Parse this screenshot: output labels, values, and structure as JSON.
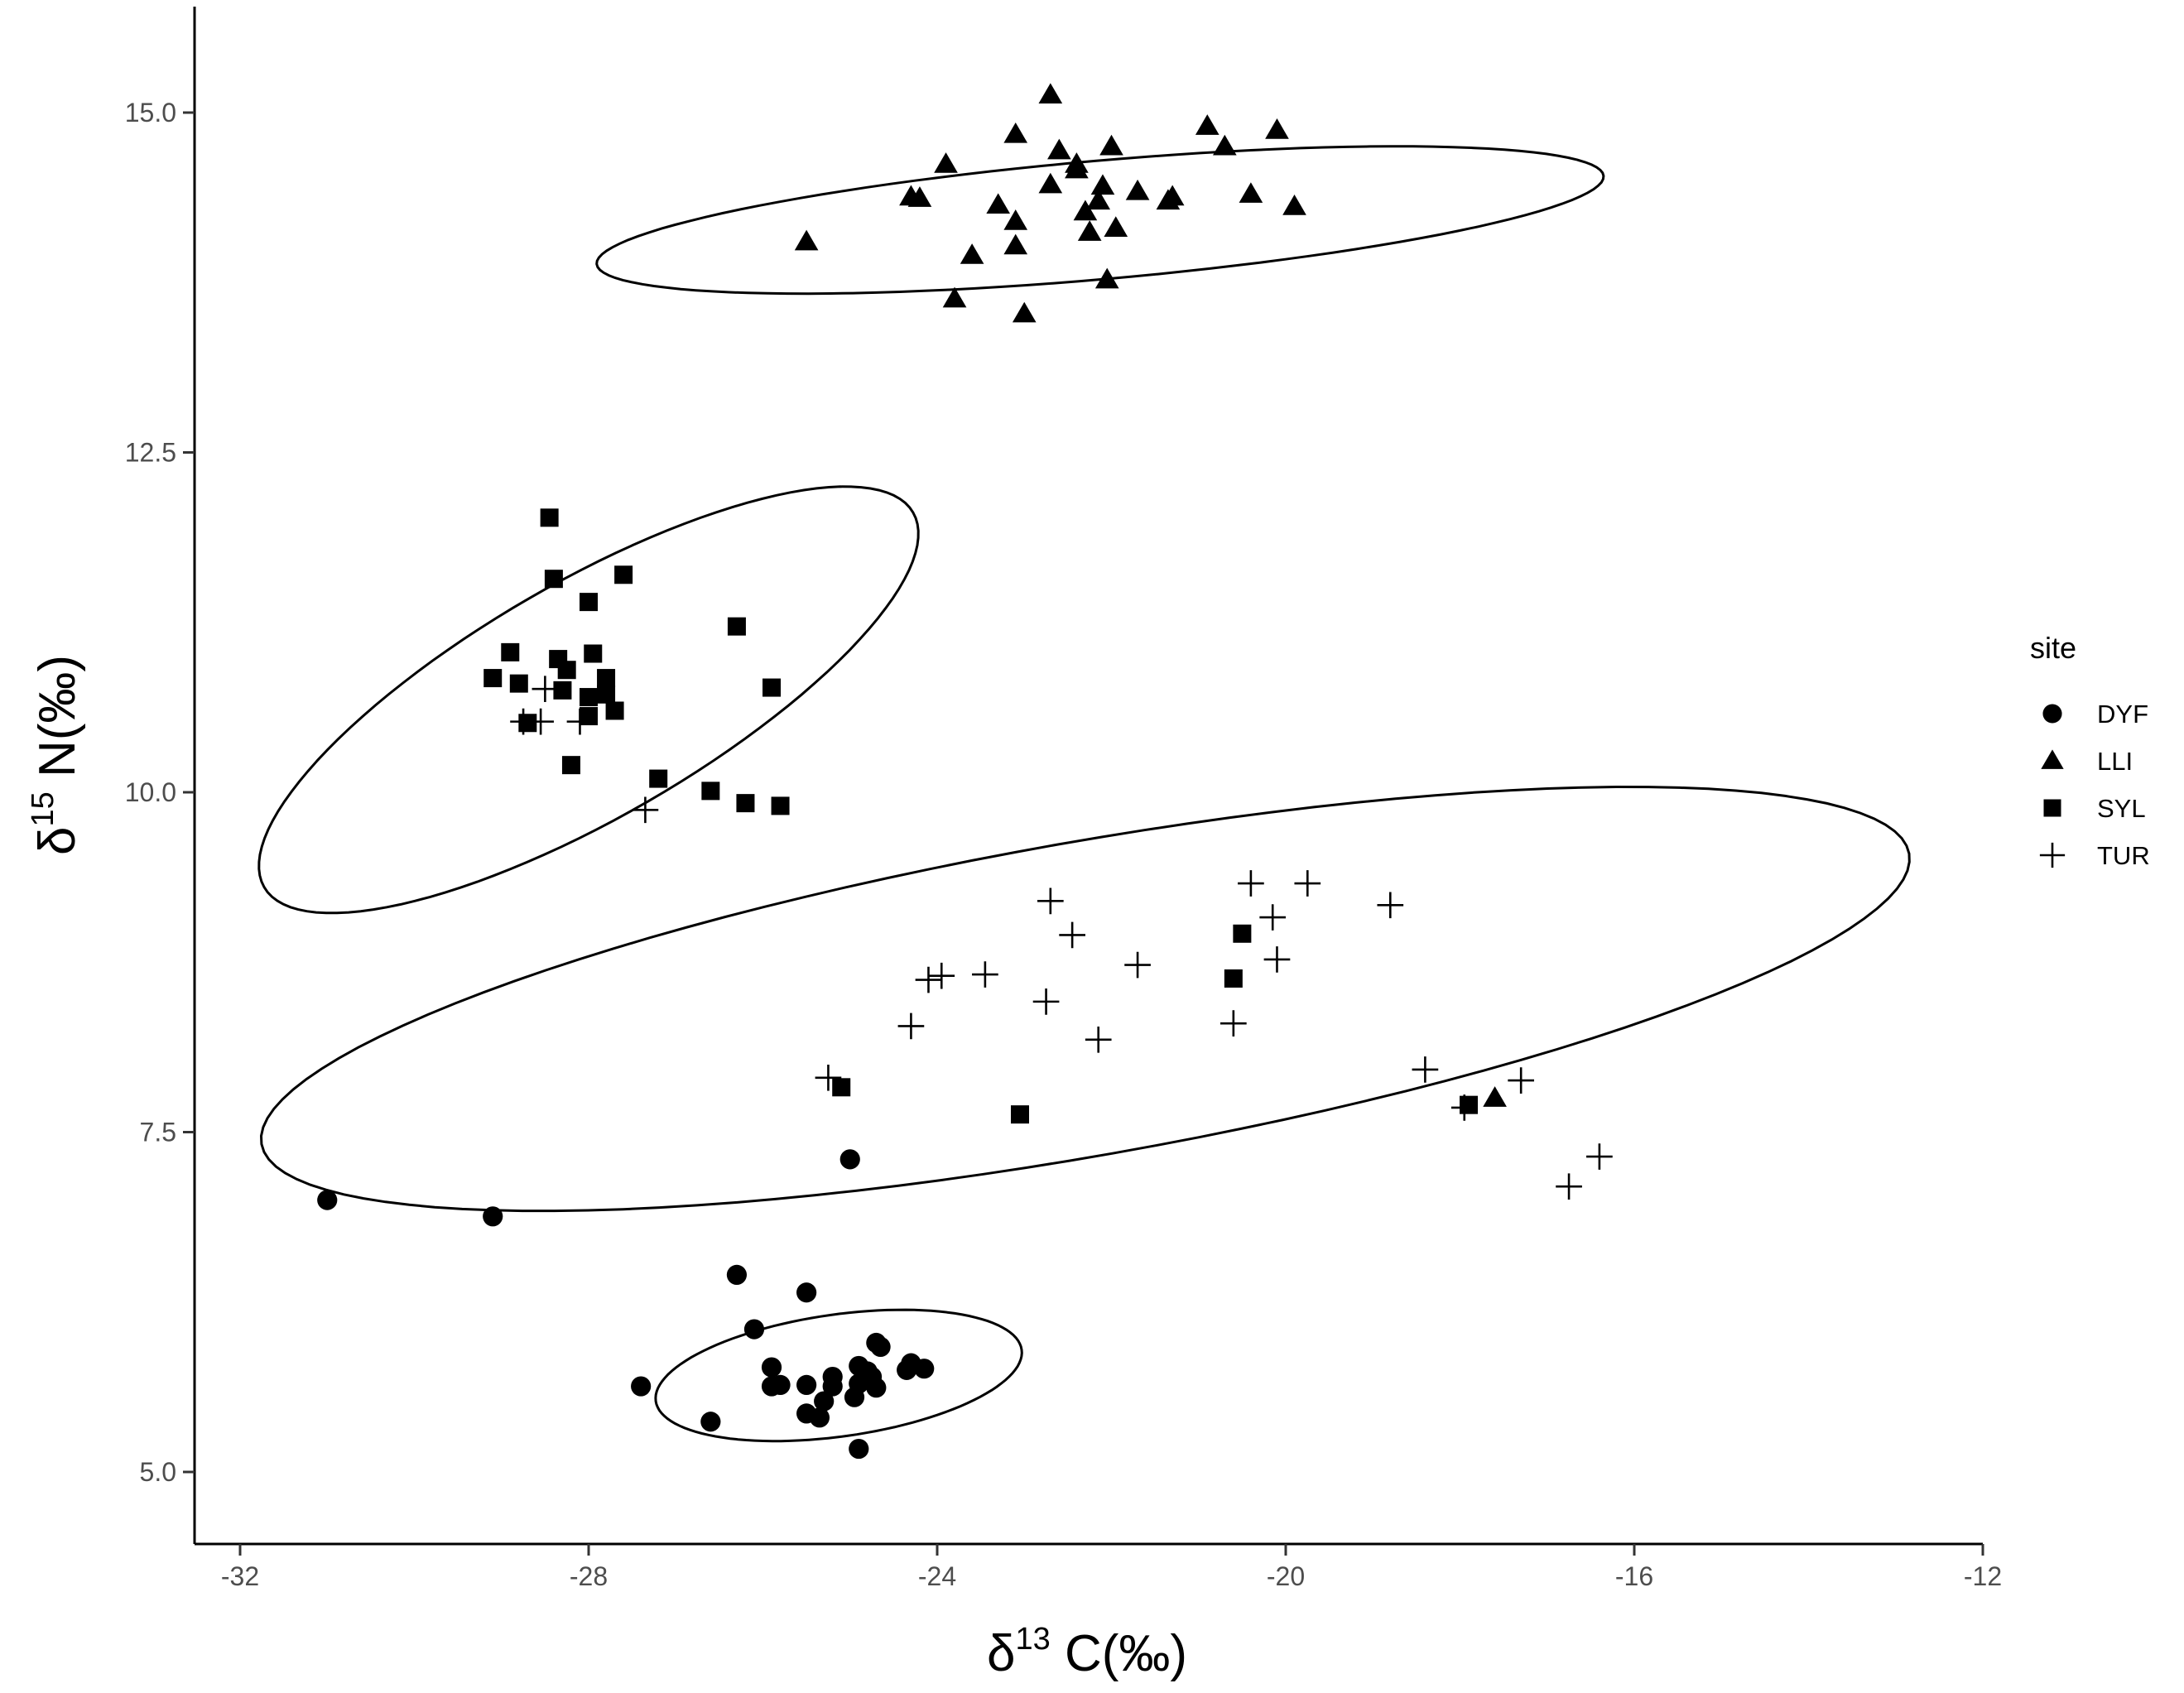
{
  "chart_data": {
    "type": "scatter",
    "xlabel": {
      "prefix": "δ",
      "sup": "13",
      "main": " C(‰)"
    },
    "ylabel": {
      "prefix": "δ",
      "sup": "15",
      "main": " N(‰)"
    },
    "xlim": [
      -32.5,
      -12
    ],
    "ylim": [
      4.5,
      15.8
    ],
    "x_ticks": [
      -32,
      -28,
      -24,
      -20,
      -16,
      -12
    ],
    "x_tick_labels": [
      "-32",
      "-28",
      "-24",
      "-20",
      "-16",
      "-12"
    ],
    "y_ticks": [
      5.0,
      7.5,
      10.0,
      12.5,
      15.0
    ],
    "y_tick_labels": [
      "5.0",
      "7.5",
      "10.0",
      "12.5",
      "15.0"
    ],
    "grid": false,
    "legend": {
      "title": "site",
      "position": "right"
    },
    "series": [
      {
        "name": "DYF",
        "marker": "circle",
        "points": [
          [
            -31.0,
            7.0
          ],
          [
            -29.1,
            6.88
          ],
          [
            -25.0,
            7.3
          ],
          [
            -26.3,
            6.45
          ],
          [
            -25.5,
            6.32
          ],
          [
            -26.1,
            6.05
          ],
          [
            -24.7,
            5.95
          ],
          [
            -24.65,
            5.92
          ],
          [
            -25.9,
            5.77
          ],
          [
            -24.9,
            5.78
          ],
          [
            -24.3,
            5.8
          ],
          [
            -24.15,
            5.76
          ],
          [
            -24.35,
            5.75
          ],
          [
            -24.8,
            5.74
          ],
          [
            -25.2,
            5.7
          ],
          [
            -24.75,
            5.7
          ],
          [
            -25.9,
            5.63
          ],
          [
            -25.8,
            5.64
          ],
          [
            -25.5,
            5.64
          ],
          [
            -25.2,
            5.63
          ],
          [
            -24.9,
            5.65
          ],
          [
            -24.7,
            5.62
          ],
          [
            -27.4,
            5.63
          ],
          [
            -24.95,
            5.55
          ],
          [
            -25.3,
            5.52
          ],
          [
            -25.5,
            5.43
          ],
          [
            -25.35,
            5.4
          ],
          [
            -26.6,
            5.37
          ],
          [
            -24.9,
            5.17
          ]
        ]
      },
      {
        "name": "LLI",
        "marker": "triangle",
        "points": [
          [
            -22.7,
            15.13
          ],
          [
            -20.9,
            14.9
          ],
          [
            -20.1,
            14.87
          ],
          [
            -23.1,
            14.84
          ],
          [
            -20.7,
            14.75
          ],
          [
            -22.0,
            14.75
          ],
          [
            -22.6,
            14.72
          ],
          [
            -22.4,
            14.62
          ],
          [
            -22.4,
            14.58
          ],
          [
            -23.9,
            14.62
          ],
          [
            -22.7,
            14.47
          ],
          [
            -22.1,
            14.46
          ],
          [
            -21.7,
            14.42
          ],
          [
            -24.3,
            14.38
          ],
          [
            -24.2,
            14.37
          ],
          [
            -20.4,
            14.4
          ],
          [
            -21.3,
            14.38
          ],
          [
            -21.35,
            14.35
          ],
          [
            -22.15,
            14.35
          ],
          [
            -23.3,
            14.32
          ],
          [
            -19.9,
            14.31
          ],
          [
            -22.3,
            14.27
          ],
          [
            -23.1,
            14.2
          ],
          [
            -21.95,
            14.15
          ],
          [
            -22.25,
            14.12
          ],
          [
            -25.5,
            14.05
          ],
          [
            -23.1,
            14.02
          ],
          [
            -23.6,
            13.95
          ],
          [
            -22.05,
            13.77
          ],
          [
            -23.8,
            13.63
          ],
          [
            -23.0,
            13.52
          ],
          [
            -17.6,
            7.75
          ]
        ]
      },
      {
        "name": "SYL",
        "marker": "square",
        "points": [
          [
            -28.45,
            12.02
          ],
          [
            -28.4,
            11.57
          ],
          [
            -27.6,
            11.6
          ],
          [
            -28.0,
            11.4
          ],
          [
            -26.3,
            11.22
          ],
          [
            -28.9,
            11.03
          ],
          [
            -27.95,
            11.02
          ],
          [
            -28.35,
            10.98
          ],
          [
            -28.25,
            10.9
          ],
          [
            -29.1,
            10.84
          ],
          [
            -27.8,
            10.84
          ],
          [
            -28.8,
            10.8
          ],
          [
            -25.9,
            10.77
          ],
          [
            -28.3,
            10.75
          ],
          [
            -27.8,
            10.72
          ],
          [
            -28.0,
            10.7
          ],
          [
            -27.7,
            10.6
          ],
          [
            -28.0,
            10.56
          ],
          [
            -28.7,
            10.51
          ],
          [
            -28.2,
            10.2
          ],
          [
            -27.2,
            10.1
          ],
          [
            -26.6,
            10.01
          ],
          [
            -26.2,
            9.92
          ],
          [
            -25.8,
            9.9
          ],
          [
            -20.5,
            8.96
          ],
          [
            -20.6,
            8.63
          ],
          [
            -25.1,
            7.83
          ],
          [
            -23.05,
            7.63
          ],
          [
            -17.9,
            7.7
          ]
        ]
      },
      {
        "name": "TUR",
        "marker": "plus",
        "points": [
          [
            -28.5,
            10.76
          ],
          [
            -28.55,
            10.52
          ],
          [
            -28.75,
            10.52
          ],
          [
            -28.1,
            10.52
          ],
          [
            -27.35,
            9.87
          ],
          [
            -19.75,
            9.33
          ],
          [
            -20.4,
            9.33
          ],
          [
            -22.7,
            9.2
          ],
          [
            -18.8,
            9.17
          ],
          [
            -20.15,
            9.08
          ],
          [
            -22.45,
            8.95
          ],
          [
            -20.1,
            8.77
          ],
          [
            -21.7,
            8.73
          ],
          [
            -23.45,
            8.66
          ],
          [
            -23.95,
            8.65
          ],
          [
            -24.1,
            8.62
          ],
          [
            -22.75,
            8.46
          ],
          [
            -20.6,
            8.3
          ],
          [
            -24.3,
            8.28
          ],
          [
            -22.15,
            8.18
          ],
          [
            -18.4,
            7.96
          ],
          [
            -17.3,
            7.88
          ],
          [
            -25.25,
            7.9
          ],
          [
            -17.95,
            7.68
          ],
          [
            -16.4,
            7.32
          ],
          [
            -16.75,
            7.1
          ]
        ]
      }
    ],
    "ellipses": [
      {
        "group": "LLI",
        "cx": -22.13,
        "cy": 14.21,
        "rx": 5.8,
        "ry": 0.68,
        "angle_deg": -5
      },
      {
        "group": "SYL",
        "cx": -28.0,
        "cy": 10.68,
        "rx": 4.3,
        "ry": 1.35,
        "angle_deg": -30
      },
      {
        "group": "TUR",
        "cx": -22.3,
        "cy": 8.48,
        "rx": 9.6,
        "ry": 1.8,
        "angle_deg": -10
      },
      {
        "group": "DYF",
        "cx": -25.13,
        "cy": 5.71,
        "rx": 2.12,
        "ry": 0.7,
        "angle_deg": -8
      }
    ]
  }
}
